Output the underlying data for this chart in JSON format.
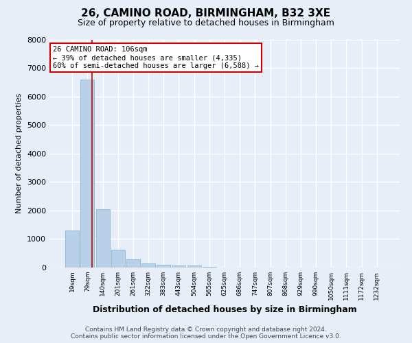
{
  "title": "26, CAMINO ROAD, BIRMINGHAM, B32 3XE",
  "subtitle": "Size of property relative to detached houses in Birmingham",
  "xlabel": "Distribution of detached houses by size in Birmingham",
  "ylabel": "Number of detached properties",
  "categories": [
    "19sqm",
    "79sqm",
    "140sqm",
    "201sqm",
    "261sqm",
    "322sqm",
    "383sqm",
    "443sqm",
    "504sqm",
    "565sqm",
    "625sqm",
    "686sqm",
    "747sqm",
    "807sqm",
    "868sqm",
    "929sqm",
    "990sqm",
    "1050sqm",
    "1111sqm",
    "1172sqm",
    "1232sqm"
  ],
  "values": [
    1300,
    6600,
    2050,
    620,
    300,
    150,
    100,
    80,
    80,
    20,
    5,
    3,
    2,
    1,
    1,
    1,
    1,
    1,
    1,
    1,
    1
  ],
  "bar_color": "#b8d0e8",
  "bar_edge_color": "#7aafd4",
  "annotation_line1": "26 CAMINO ROAD: 106sqm",
  "annotation_line2": "← 39% of detached houses are smaller (4,335)",
  "annotation_line3": "60% of semi-detached houses are larger (6,588) →",
  "annotation_box_color": "#ffffff",
  "annotation_box_edge_color": "#cc0000",
  "vline_color": "#cc0000",
  "vline_x": 1.28,
  "ylim": [
    0,
    8000
  ],
  "yticks": [
    0,
    1000,
    2000,
    3000,
    4000,
    5000,
    6000,
    7000,
    8000
  ],
  "bg_color": "#e8eef8",
  "plot_bg_color": "#e8eef8",
  "grid_color": "#ffffff",
  "footer_line1": "Contains HM Land Registry data © Crown copyright and database right 2024.",
  "footer_line2": "Contains public sector information licensed under the Open Government Licence v3.0."
}
